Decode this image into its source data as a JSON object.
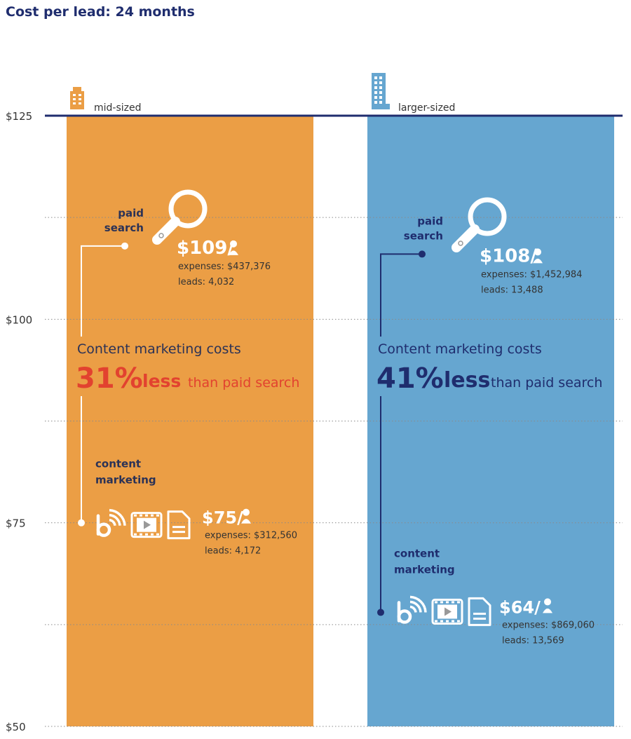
{
  "chart_data": {
    "type": "bar",
    "title": "Cost per lead: 24 months",
    "ylim": [
      50,
      125
    ],
    "yticks": [
      {
        "value": 125,
        "label": "$125"
      },
      {
        "value": 100,
        "label": "$100"
      },
      {
        "value": 75,
        "label": "$75"
      },
      {
        "value": 50,
        "label": "$50"
      }
    ],
    "minor_gridlines": [
      112.5,
      87.5,
      62.5
    ],
    "groups": [
      {
        "key": "mid",
        "label": "mid-sized",
        "icon": "small-building-icon",
        "color": "#EB9E45",
        "line_color": "#ffffff",
        "pct_color": "#E2422F",
        "text_color": "#2B3256",
        "paid_search": {
          "label_line1": "paid",
          "label_line2": "search",
          "value": 109,
          "value_label": "$109/",
          "expenses": "expenses: $437,376",
          "leads": "leads: 4,032"
        },
        "content_marketing": {
          "label_line1": "content",
          "label_line2": "marketing",
          "value": 75,
          "value_label": "$75/",
          "expenses": "expenses: $312,560",
          "leads": "leads: 4,172"
        },
        "headline": "Content marketing costs",
        "pct": "31%",
        "less": "less",
        "than": "than paid search"
      },
      {
        "key": "large",
        "label": "larger-sized",
        "icon": "tall-building-icon",
        "color": "#66A6D0",
        "line_color": "#1F2D6E",
        "pct_color": "#1F2D6E",
        "text_color": "#1F2D6E",
        "paid_search": {
          "label_line1": "paid",
          "label_line2": "search",
          "value": 108,
          "value_label": "$108/",
          "expenses": "expenses: $1,452,984",
          "leads": "leads: 13,488"
        },
        "content_marketing": {
          "label_line1": "content",
          "label_line2": "marketing",
          "value": 64,
          "value_label": "$64/",
          "expenses": "expenses: $869,060",
          "leads": "leads: 13,569"
        },
        "headline": "Content marketing costs",
        "pct": "41%",
        "less": "less",
        "than": "than paid search"
      }
    ]
  }
}
